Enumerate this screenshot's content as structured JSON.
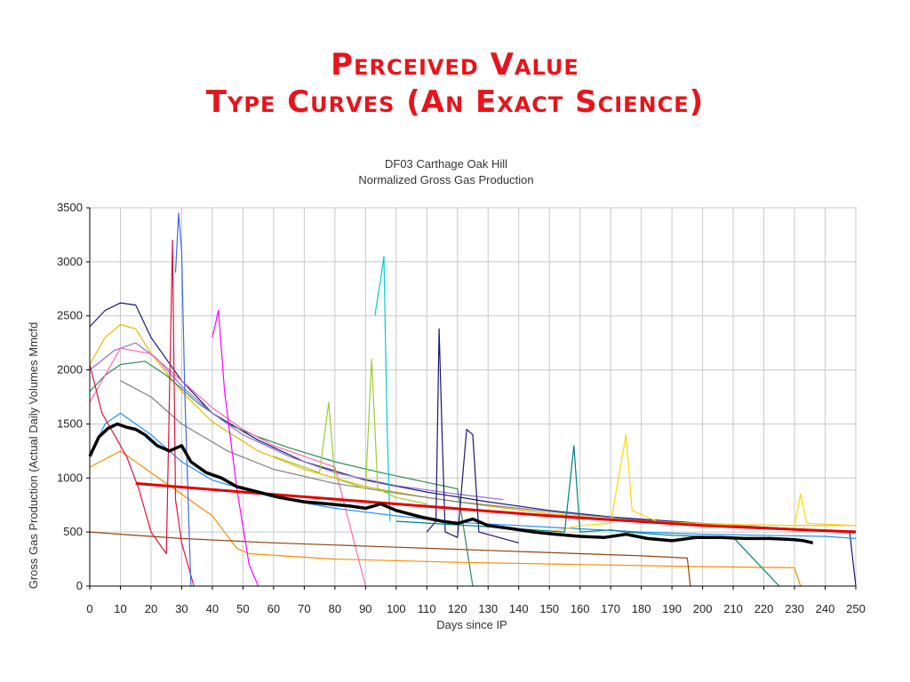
{
  "slide": {
    "title_line1": "Perceived Value",
    "title_line2": "Type Curves  (An Exact Science)"
  },
  "chart_data": {
    "type": "line",
    "title": "DF03 Carthage Oak Hill",
    "subtitle": "Normalized Gross Gas Production",
    "xlabel": "Days since IP",
    "ylabel": "Gross Gas Production (Actual Daily Volumes Mmcfd",
    "xlim": [
      0,
      250
    ],
    "ylim": [
      0,
      3500
    ],
    "xticks": [
      0,
      10,
      20,
      30,
      40,
      50,
      60,
      70,
      80,
      90,
      100,
      110,
      120,
      130,
      140,
      150,
      160,
      170,
      180,
      190,
      200,
      210,
      220,
      230,
      240,
      250
    ],
    "yticks": [
      0,
      500,
      1000,
      1500,
      2000,
      2500,
      3000,
      3500
    ],
    "grid": true,
    "legend": "none",
    "series": [
      {
        "color": "#1a1a7a",
        "values": [
          [
            0,
            2400
          ],
          [
            5,
            2550
          ],
          [
            10,
            2620
          ],
          [
            15,
            2600
          ],
          [
            20,
            2300
          ],
          [
            30,
            1900
          ],
          [
            40,
            1600
          ],
          [
            55,
            1350
          ],
          [
            70,
            1150
          ],
          [
            90,
            980
          ],
          [
            110,
            870
          ],
          [
            130,
            780
          ],
          [
            150,
            700
          ],
          [
            170,
            640
          ],
          [
            190,
            600
          ],
          [
            210,
            560
          ],
          [
            230,
            530
          ],
          [
            248,
            500
          ],
          [
            250,
            0
          ]
        ]
      },
      {
        "color": "#e6b800",
        "values": [
          [
            0,
            2050
          ],
          [
            5,
            2300
          ],
          [
            10,
            2420
          ],
          [
            15,
            2380
          ],
          [
            20,
            2150
          ],
          [
            30,
            1800
          ],
          [
            40,
            1520
          ],
          [
            55,
            1250
          ],
          [
            70,
            1080
          ],
          [
            90,
            920
          ],
          [
            110,
            820
          ],
          [
            130,
            740
          ],
          [
            150,
            670
          ],
          [
            170,
            620
          ],
          [
            190,
            590
          ],
          [
            210,
            570
          ],
          [
            230,
            560
          ],
          [
            250,
            560
          ]
        ]
      },
      {
        "color": "#2e8b57",
        "values": [
          [
            0,
            1800
          ],
          [
            5,
            1950
          ],
          [
            10,
            2050
          ],
          [
            18,
            2080
          ],
          [
            25,
            1950
          ],
          [
            35,
            1700
          ],
          [
            45,
            1500
          ],
          [
            55,
            1380
          ],
          [
            65,
            1280
          ],
          [
            80,
            1150
          ],
          [
            95,
            1050
          ],
          [
            110,
            960
          ],
          [
            120,
            900
          ],
          [
            125,
            0
          ]
        ]
      },
      {
        "color": "#9370db",
        "values": [
          [
            0,
            2000
          ],
          [
            8,
            2180
          ],
          [
            15,
            2250
          ],
          [
            22,
            2100
          ],
          [
            30,
            1850
          ],
          [
            40,
            1600
          ],
          [
            50,
            1400
          ],
          [
            65,
            1200
          ],
          [
            80,
            1050
          ],
          [
            100,
            930
          ],
          [
            120,
            850
          ],
          [
            135,
            800
          ]
        ]
      },
      {
        "color": "#ff69b4",
        "values": [
          [
            0,
            1700
          ],
          [
            10,
            2200
          ],
          [
            20,
            2150
          ],
          [
            30,
            1900
          ],
          [
            40,
            1650
          ],
          [
            50,
            1450
          ],
          [
            60,
            1300
          ],
          [
            70,
            1200
          ],
          [
            80,
            1100
          ],
          [
            90,
            0
          ]
        ]
      },
      {
        "color": "#1e90ff",
        "values": [
          [
            0,
            1200
          ],
          [
            5,
            1500
          ],
          [
            10,
            1600
          ],
          [
            20,
            1400
          ],
          [
            30,
            1150
          ],
          [
            40,
            980
          ],
          [
            60,
            820
          ],
          [
            80,
            720
          ],
          [
            100,
            650
          ],
          [
            120,
            590
          ],
          [
            140,
            560
          ],
          [
            160,
            530
          ],
          [
            180,
            500
          ],
          [
            200,
            480
          ],
          [
            220,
            470
          ],
          [
            240,
            460
          ],
          [
            250,
            440
          ]
        ]
      },
      {
        "color": "#ff8c00",
        "values": [
          [
            0,
            1100
          ],
          [
            10,
            1250
          ],
          [
            20,
            1050
          ],
          [
            30,
            850
          ],
          [
            40,
            650
          ],
          [
            48,
            350
          ],
          [
            52,
            300
          ],
          [
            80,
            250
          ],
          [
            120,
            220
          ],
          [
            160,
            200
          ],
          [
            200,
            180
          ],
          [
            230,
            170
          ],
          [
            232,
            0
          ]
        ]
      },
      {
        "color": "#8b4513",
        "values": [
          [
            0,
            500
          ],
          [
            10,
            480
          ],
          [
            30,
            440
          ],
          [
            60,
            400
          ],
          [
            100,
            360
          ],
          [
            130,
            330
          ],
          [
            160,
            300
          ],
          [
            180,
            280
          ],
          [
            195,
            260
          ],
          [
            196,
            0
          ]
        ]
      },
      {
        "color": "#808080",
        "values": [
          [
            10,
            1900
          ],
          [
            20,
            1750
          ],
          [
            30,
            1500
          ],
          [
            45,
            1250
          ],
          [
            60,
            1080
          ],
          [
            80,
            950
          ],
          [
            100,
            860
          ],
          [
            120,
            780
          ],
          [
            140,
            720
          ],
          [
            160,
            660
          ],
          [
            180,
            610
          ],
          [
            200,
            570
          ],
          [
            220,
            540
          ],
          [
            240,
            520
          ],
          [
            250,
            510
          ]
        ]
      },
      {
        "color": "#dc143c",
        "values": [
          [
            0,
            2050
          ],
          [
            4,
            1600
          ],
          [
            8,
            1400
          ],
          [
            12,
            1200
          ],
          [
            16,
            900
          ],
          [
            20,
            500
          ],
          [
            25,
            300
          ],
          [
            27,
            3200
          ],
          [
            28,
            800
          ],
          [
            30,
            400
          ],
          [
            34,
            0
          ]
        ]
      },
      {
        "color": "#4169e1",
        "values": [
          [
            28,
            2900
          ],
          [
            29,
            3450
          ],
          [
            30,
            3100
          ],
          [
            31,
            1800
          ],
          [
            33,
            0
          ]
        ]
      },
      {
        "color": "#191970",
        "values": [
          [
            110,
            500
          ],
          [
            113,
            600
          ],
          [
            114,
            2380
          ],
          [
            115,
            1400
          ],
          [
            116,
            500
          ],
          [
            120,
            450
          ],
          [
            123,
            1450
          ],
          [
            125,
            1400
          ],
          [
            127,
            500
          ],
          [
            140,
            400
          ]
        ]
      },
      {
        "color": "#00ced1",
        "values": [
          [
            93,
            2500
          ],
          [
            95,
            2850
          ],
          [
            96,
            3050
          ],
          [
            97,
            1500
          ],
          [
            98,
            600
          ]
        ]
      },
      {
        "color": "#9acd32",
        "values": [
          [
            60,
            1200
          ],
          [
            70,
            1100
          ],
          [
            75,
            1050
          ],
          [
            78,
            1700
          ],
          [
            80,
            1000
          ],
          [
            90,
            900
          ],
          [
            92,
            2100
          ],
          [
            94,
            900
          ],
          [
            100,
            820
          ],
          [
            110,
            760
          ]
        ]
      },
      {
        "color": "#ffd700",
        "values": [
          [
            150,
            500
          ],
          [
            160,
            560
          ],
          [
            170,
            580
          ],
          [
            175,
            1400
          ],
          [
            177,
            700
          ],
          [
            185,
            600
          ],
          [
            200,
            570
          ],
          [
            230,
            560
          ],
          [
            232,
            850
          ],
          [
            234,
            580
          ],
          [
            250,
            560
          ]
        ]
      },
      {
        "color": "#ff00ff",
        "values": [
          [
            40,
            2300
          ],
          [
            42,
            2550
          ],
          [
            44,
            1800
          ],
          [
            48,
            900
          ],
          [
            52,
            200
          ],
          [
            55,
            0
          ]
        ]
      },
      {
        "color": "#008080",
        "values": [
          [
            100,
            600
          ],
          [
            130,
            550
          ],
          [
            155,
            500
          ],
          [
            158,
            1300
          ],
          [
            160,
            500
          ],
          [
            170,
            520
          ],
          [
            175,
            500
          ],
          [
            190,
            470
          ],
          [
            210,
            450
          ],
          [
            225,
            0
          ]
        ]
      },
      {
        "color": "#e60000",
        "values": [
          [
            15,
            950
          ],
          [
            50,
            870
          ],
          [
            100,
            760
          ],
          [
            150,
            650
          ],
          [
            200,
            560
          ],
          [
            250,
            500
          ]
        ]
      },
      {
        "color": "#000000",
        "values": [
          [
            0,
            1200
          ],
          [
            3,
            1380
          ],
          [
            6,
            1460
          ],
          [
            9,
            1500
          ],
          [
            12,
            1470
          ],
          [
            15,
            1450
          ],
          [
            18,
            1400
          ],
          [
            22,
            1300
          ],
          [
            26,
            1250
          ],
          [
            30,
            1300
          ],
          [
            33,
            1150
          ],
          [
            38,
            1050
          ],
          [
            43,
            1000
          ],
          [
            48,
            920
          ],
          [
            55,
            870
          ],
          [
            62,
            820
          ],
          [
            70,
            780
          ],
          [
            78,
            760
          ],
          [
            85,
            740
          ],
          [
            90,
            720
          ],
          [
            95,
            760
          ],
          [
            100,
            700
          ],
          [
            108,
            640
          ],
          [
            115,
            600
          ],
          [
            120,
            580
          ],
          [
            125,
            620
          ],
          [
            130,
            560
          ],
          [
            138,
            530
          ],
          [
            145,
            500
          ],
          [
            152,
            480
          ],
          [
            160,
            460
          ],
          [
            168,
            450
          ],
          [
            175,
            480
          ],
          [
            182,
            440
          ],
          [
            190,
            420
          ],
          [
            198,
            450
          ],
          [
            206,
            450
          ],
          [
            214,
            440
          ],
          [
            222,
            440
          ],
          [
            230,
            430
          ],
          [
            233,
            420
          ],
          [
            236,
            400
          ]
        ]
      }
    ]
  }
}
